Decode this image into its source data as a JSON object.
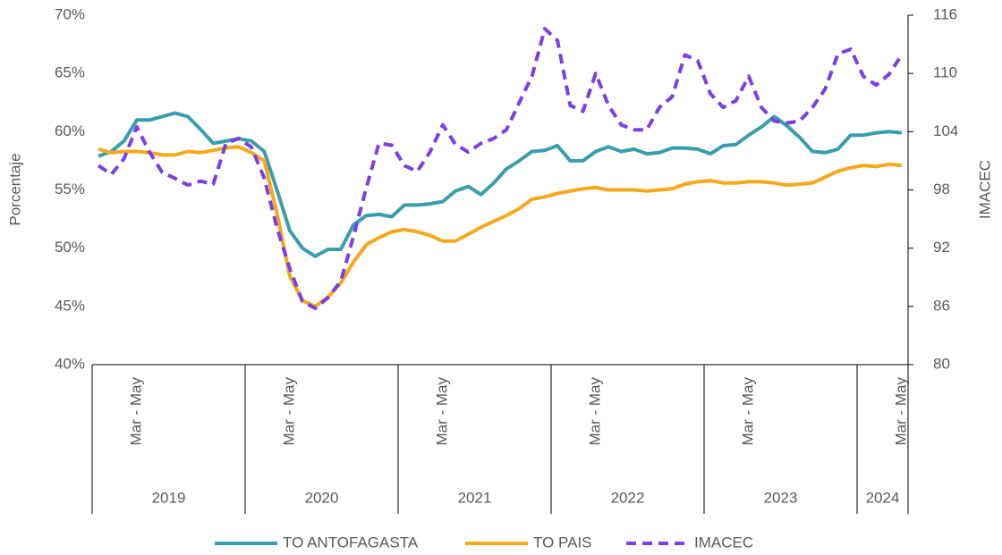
{
  "chart_data": {
    "type": "line",
    "ylabel": "Porcentaje",
    "y2label": "IMACEC",
    "ylim": [
      40,
      70
    ],
    "yticks": [
      {
        "value": 40,
        "label": "40%"
      },
      {
        "value": 45,
        "label": "45%"
      },
      {
        "value": 50,
        "label": "50%"
      },
      {
        "value": 55,
        "label": "55%"
      },
      {
        "value": 60,
        "label": "60%"
      },
      {
        "value": 65,
        "label": "65%"
      },
      {
        "value": 70,
        "label": "70%"
      }
    ],
    "y2lim": [
      80,
      116
    ],
    "y2ticks": [
      80,
      86,
      92,
      98,
      104,
      110,
      116
    ],
    "legend": "bottom",
    "categories": [
      null,
      null,
      null,
      "Mar - May",
      null,
      null,
      null,
      null,
      null,
      null,
      null,
      null,
      null,
      null,
      null,
      "Mar - May",
      null,
      null,
      null,
      null,
      null,
      null,
      null,
      null,
      null,
      null,
      null,
      "Mar - May",
      null,
      null,
      null,
      null,
      null,
      null,
      null,
      null,
      null,
      null,
      null,
      "Mar - May",
      null,
      null,
      null,
      null,
      null,
      null,
      null,
      null,
      null,
      null,
      null,
      "Mar - May",
      null,
      null,
      null,
      null,
      null,
      null,
      null,
      null,
      null,
      null,
      null,
      "Mar - May"
    ],
    "groups": [
      {
        "label": "2019",
        "count": 12
      },
      {
        "label": "2020",
        "count": 12
      },
      {
        "label": "2021",
        "count": 12
      },
      {
        "label": "2022",
        "count": 12
      },
      {
        "label": "2023",
        "count": 12
      },
      {
        "label": "2024",
        "count": 4
      }
    ],
    "series": [
      {
        "name": "TO ANTOFAGASTA",
        "color": "#3a9dad",
        "dashed": false,
        "values": [
          57.9,
          58.3,
          59.2,
          61.0,
          61.0,
          61.3,
          61.6,
          61.3,
          60.2,
          59.0,
          59.2,
          59.4,
          59.2,
          58.3,
          55.0,
          51.5,
          50.0,
          49.3,
          49.9,
          49.9,
          52.0,
          52.8,
          52.9,
          52.7,
          53.7,
          53.7,
          53.8,
          54.0,
          54.9,
          55.3,
          54.6,
          55.6,
          56.8,
          57.5,
          58.3,
          58.4,
          58.8,
          57.5,
          57.5,
          58.3,
          58.7,
          58.3,
          58.5,
          58.1,
          58.2,
          58.6,
          58.6,
          58.5,
          58.1,
          58.8,
          58.9,
          59.7,
          60.4,
          61.3,
          60.5,
          59.5,
          58.3,
          58.2,
          58.5,
          59.7,
          59.7,
          59.9,
          60.0,
          59.9
        ]
      },
      {
        "name": "TO PAIS",
        "color": "#f5a81c",
        "dashed": false,
        "values": [
          58.5,
          58.2,
          58.3,
          58.3,
          58.2,
          58.0,
          58.0,
          58.3,
          58.2,
          58.4,
          58.6,
          58.7,
          58.2,
          57.5,
          53.0,
          47.6,
          45.5,
          45.0,
          45.8,
          47.0,
          48.8,
          50.3,
          50.9,
          51.4,
          51.6,
          51.4,
          51.1,
          50.6,
          50.6,
          51.2,
          51.8,
          52.3,
          52.8,
          53.4,
          54.2,
          54.4,
          54.7,
          54.9,
          55.1,
          55.2,
          55.0,
          55.0,
          55.0,
          54.9,
          55.0,
          55.1,
          55.5,
          55.7,
          55.8,
          55.6,
          55.6,
          55.7,
          55.7,
          55.6,
          55.4,
          55.5,
          55.6,
          56.1,
          56.6,
          56.9,
          57.1,
          57.0,
          57.2,
          57.1
        ]
      },
      {
        "name": "IMACEC",
        "color": "#7b3fe4",
        "dashed": true,
        "axis": "y2",
        "values": [
          100.5,
          99.6,
          101.2,
          104.5,
          101.9,
          99.8,
          99.2,
          98.5,
          98.9,
          98.6,
          102.8,
          103.3,
          102.4,
          99.2,
          94.1,
          89.9,
          86.5,
          85.8,
          86.9,
          88.6,
          93.2,
          98.2,
          102.8,
          102.6,
          100.5,
          99.9,
          101.9,
          104.7,
          102.7,
          101.9,
          102.8,
          103.3,
          104.2,
          107.0,
          109.7,
          114.6,
          113.4,
          106.7,
          106.1,
          110.0,
          106.7,
          104.7,
          104.2,
          104.2,
          106.5,
          107.6,
          111.9,
          111.3,
          107.9,
          106.5,
          107.2,
          109.7,
          106.5,
          105.1,
          104.9,
          105.1,
          106.5,
          108.4,
          112.0,
          112.5,
          109.7,
          108.8,
          109.9,
          111.9
        ]
      }
    ]
  }
}
